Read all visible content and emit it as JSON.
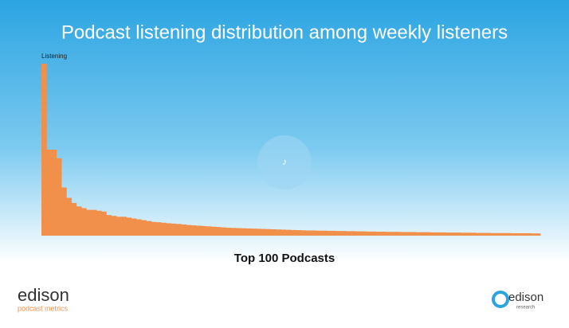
{
  "chart_data": {
    "type": "bar",
    "title": "Podcast listening distribution among weekly listeners",
    "y_label": "Listening",
    "x_label": "Top 100 Podcasts",
    "values": [
      100,
      50,
      50,
      45,
      28,
      22,
      19,
      17,
      16,
      15,
      15,
      14.5,
      14,
      12,
      11.5,
      11,
      11,
      10.5,
      10,
      9.5,
      9,
      8.5,
      8,
      7.8,
      7.5,
      7.2,
      7,
      6.8,
      6.5,
      6.2,
      6,
      5.8,
      5.6,
      5.4,
      5.2,
      5,
      4.8,
      4.6,
      4.5,
      4.4,
      4.3,
      4.2,
      4.1,
      4,
      3.9,
      3.8,
      3.7,
      3.6,
      3.5,
      3.4,
      3.3,
      3.2,
      3.1,
      3,
      3,
      2.9,
      2.9,
      2.8,
      2.8,
      2.7,
      2.7,
      2.6,
      2.6,
      2.5,
      2.5,
      2.4,
      2.4,
      2.3,
      2.3,
      2.2,
      2.2,
      2.2,
      2.1,
      2.1,
      2.1,
      2,
      2,
      2,
      1.9,
      1.9,
      1.9,
      1.8,
      1.8,
      1.8,
      1.7,
      1.7,
      1.7,
      1.6,
      1.6,
      1.6,
      1.5,
      1.5,
      1.5,
      1.5,
      1.4,
      1.4,
      1.4,
      1.4,
      1.3,
      1.3
    ],
    "color": "#f0904a",
    "ylim": [
      0,
      100
    ]
  },
  "logos": {
    "left": {
      "name": "edison",
      "tagline": "podcast metrics"
    },
    "right": {
      "name": "edison",
      "tagline": "research"
    }
  }
}
